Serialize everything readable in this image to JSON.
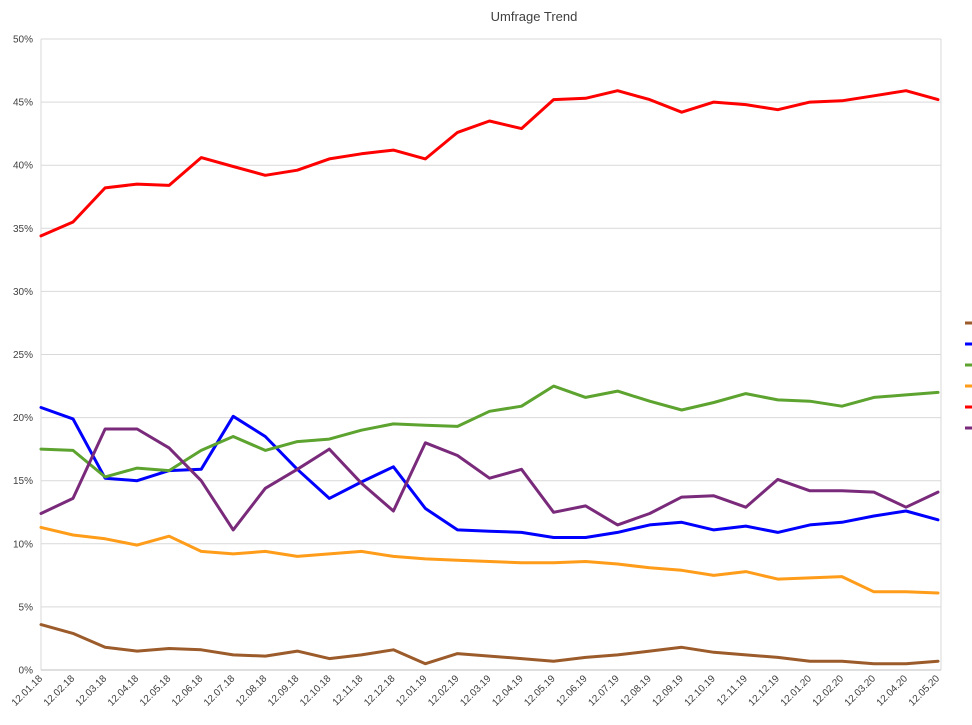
{
  "chart_data": {
    "type": "line",
    "title": "Umfrage Trend",
    "xlabel": "",
    "ylabel": "",
    "ylim": [
      0,
      50
    ],
    "y_ticks": [
      "0%",
      "5%",
      "10%",
      "15%",
      "20%",
      "25%",
      "30%",
      "35%",
      "40%",
      "45%",
      "50%"
    ],
    "y_tick_values": [
      0,
      5,
      10,
      15,
      20,
      25,
      30,
      35,
      40,
      45,
      50
    ],
    "grid": "horizontal",
    "legend_position": "right",
    "categories": [
      "12.01.18",
      "12.02.18",
      "12.03.18",
      "12.04.18",
      "12.05.18",
      "12.06.18",
      "12.07.18",
      "12.08.18",
      "12.09.18",
      "12.10.18",
      "12.11.18",
      "12.12.18",
      "12.01.19",
      "12.02.19",
      "12.03.19",
      "12.04.19",
      "12.05.19",
      "12.06.19",
      "12.07.19",
      "12.08.19",
      "12.09.19",
      "12.10.19",
      "12.11.19",
      "12.12.19",
      "12.01.20",
      "12.02.20",
      "12.03.20",
      "12.04.20",
      "12.05.20"
    ],
    "series": [
      {
        "color": "#9C5B2A",
        "values": [
          3.6,
          2.9,
          1.8,
          1.5,
          1.7,
          1.6,
          1.2,
          1.1,
          1.5,
          0.9,
          1.2,
          1.6,
          0.5,
          1.3,
          1.1,
          0.9,
          0.7,
          1.0,
          1.2,
          1.5,
          1.8,
          1.4,
          1.2,
          1.0,
          0.7,
          0.7,
          0.5,
          0.5,
          0.7
        ]
      },
      {
        "color": "#0000FF",
        "values": [
          20.8,
          19.9,
          15.2,
          15.0,
          15.8,
          15.9,
          20.1,
          18.5,
          15.9,
          13.6,
          14.9,
          16.1,
          12.8,
          11.1,
          11.0,
          10.9,
          10.5,
          10.5,
          10.9,
          11.5,
          11.7,
          11.1,
          11.4,
          10.9,
          11.5,
          11.7,
          12.2,
          12.6,
          11.9
        ]
      },
      {
        "color": "#5DA32F",
        "values": [
          17.5,
          17.4,
          15.3,
          16.0,
          15.8,
          17.4,
          18.5,
          17.4,
          18.1,
          18.3,
          19.0,
          19.5,
          19.4,
          19.3,
          20.5,
          20.9,
          22.5,
          21.6,
          22.1,
          21.3,
          20.6,
          21.2,
          21.9,
          21.4,
          21.3,
          20.9,
          21.6,
          21.8,
          22.0
        ]
      },
      {
        "color": "#FF9C1A",
        "values": [
          11.3,
          10.7,
          10.4,
          9.9,
          10.6,
          9.4,
          9.2,
          9.4,
          9.0,
          9.2,
          9.4,
          9.0,
          8.8,
          8.7,
          8.6,
          8.5,
          8.5,
          8.6,
          8.4,
          8.1,
          7.9,
          7.5,
          7.8,
          7.2,
          7.3,
          7.4,
          6.2,
          6.2,
          6.1
        ]
      },
      {
        "color": "#FF0000",
        "values": [
          34.4,
          35.5,
          38.2,
          38.5,
          38.4,
          40.6,
          39.9,
          39.2,
          39.6,
          40.5,
          40.9,
          41.2,
          40.5,
          42.6,
          43.5,
          42.9,
          45.2,
          45.3,
          45.9,
          45.2,
          44.2,
          45.0,
          44.8,
          44.4,
          45.0,
          45.1,
          45.5,
          45.9,
          45.2
        ]
      },
      {
        "color": "#7A2A7A",
        "values": [
          12.4,
          13.6,
          19.1,
          19.1,
          17.6,
          15.0,
          11.1,
          14.4,
          15.9,
          17.5,
          14.8,
          12.6,
          18.0,
          17.0,
          15.2,
          15.9,
          12.5,
          13.0,
          11.5,
          12.4,
          13.7,
          13.8,
          12.9,
          15.1,
          14.2,
          14.2,
          14.1,
          12.9,
          14.1
        ]
      }
    ]
  }
}
